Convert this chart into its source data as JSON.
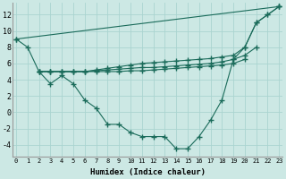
{
  "color": "#1a6b5a",
  "bg_color": "#cce8e4",
  "grid_color": "#aad4d0",
  "xlabel": "Humidex (Indice chaleur)",
  "ylim": [
    -5.5,
    13.5
  ],
  "xlim": [
    -0.3,
    23.3
  ],
  "yticks": [
    -4,
    -2,
    0,
    2,
    4,
    6,
    8,
    10,
    12
  ],
  "xticks": [
    0,
    1,
    2,
    3,
    4,
    5,
    6,
    7,
    8,
    9,
    10,
    11,
    12,
    13,
    14,
    15,
    16,
    17,
    18,
    19,
    20,
    21,
    22,
    23
  ],
  "xtick_labels": [
    "0",
    "1",
    "2",
    "3",
    "4",
    "5",
    "6",
    "7",
    "8",
    "9",
    "10",
    "11",
    "12",
    "13",
    "14",
    "15",
    "16",
    "17",
    "18",
    "19",
    "20",
    "21",
    "22",
    "23"
  ],
  "straight_line": [
    [
      0,
      9
    ],
    [
      23,
      13
    ]
  ],
  "curve": [
    [
      0,
      9
    ],
    [
      1,
      8
    ],
    [
      2,
      5
    ],
    [
      3,
      3.5
    ],
    [
      4,
      4.5
    ],
    [
      5,
      3.5
    ],
    [
      6,
      1.5
    ],
    [
      7,
      0.5
    ],
    [
      8,
      -1.5
    ],
    [
      9,
      -1.5
    ],
    [
      10,
      -2.5
    ],
    [
      11,
      -3
    ],
    [
      12,
      -3
    ],
    [
      13,
      -3
    ],
    [
      14,
      -4.5
    ],
    [
      15,
      -4.5
    ],
    [
      16,
      -3
    ],
    [
      17,
      -1
    ],
    [
      18,
      1.5
    ],
    [
      19,
      6.5
    ],
    [
      20,
      8
    ],
    [
      21,
      11
    ],
    [
      22,
      12
    ],
    [
      23,
      13
    ]
  ],
  "flat1": [
    [
      2,
      5
    ],
    [
      3,
      5
    ],
    [
      4,
      5
    ],
    [
      5,
      5
    ],
    [
      6,
      5
    ],
    [
      7,
      5.2
    ],
    [
      8,
      5.4
    ],
    [
      9,
      5.6
    ],
    [
      10,
      5.8
    ],
    [
      11,
      6.0
    ],
    [
      12,
      6.1
    ],
    [
      13,
      6.2
    ],
    [
      14,
      6.3
    ],
    [
      15,
      6.4
    ],
    [
      16,
      6.5
    ],
    [
      17,
      6.6
    ],
    [
      18,
      6.8
    ],
    [
      19,
      7.0
    ],
    [
      20,
      8.0
    ],
    [
      21,
      11.0
    ],
    [
      22,
      12.0
    ],
    [
      23,
      13.0
    ]
  ],
  "flat2": [
    [
      2,
      5
    ],
    [
      3,
      5
    ],
    [
      4,
      5
    ],
    [
      5,
      5
    ],
    [
      6,
      5
    ],
    [
      7,
      5.1
    ],
    [
      8,
      5.2
    ],
    [
      9,
      5.3
    ],
    [
      10,
      5.4
    ],
    [
      11,
      5.5
    ],
    [
      12,
      5.5
    ],
    [
      13,
      5.6
    ],
    [
      14,
      5.7
    ],
    [
      15,
      5.8
    ],
    [
      16,
      5.9
    ],
    [
      17,
      6.0
    ],
    [
      18,
      6.2
    ],
    [
      19,
      6.5
    ],
    [
      20,
      7.0
    ],
    [
      21,
      8.0
    ]
  ],
  "flat3": [
    [
      2,
      5
    ],
    [
      3,
      5
    ],
    [
      4,
      5
    ],
    [
      5,
      5
    ],
    [
      6,
      5
    ],
    [
      7,
      5.0
    ],
    [
      8,
      5.0
    ],
    [
      9,
      5.0
    ],
    [
      10,
      5.1
    ],
    [
      11,
      5.1
    ],
    [
      12,
      5.2
    ],
    [
      13,
      5.3
    ],
    [
      14,
      5.4
    ],
    [
      15,
      5.5
    ],
    [
      16,
      5.6
    ],
    [
      17,
      5.7
    ],
    [
      18,
      5.8
    ],
    [
      19,
      6.0
    ],
    [
      20,
      6.5
    ]
  ]
}
